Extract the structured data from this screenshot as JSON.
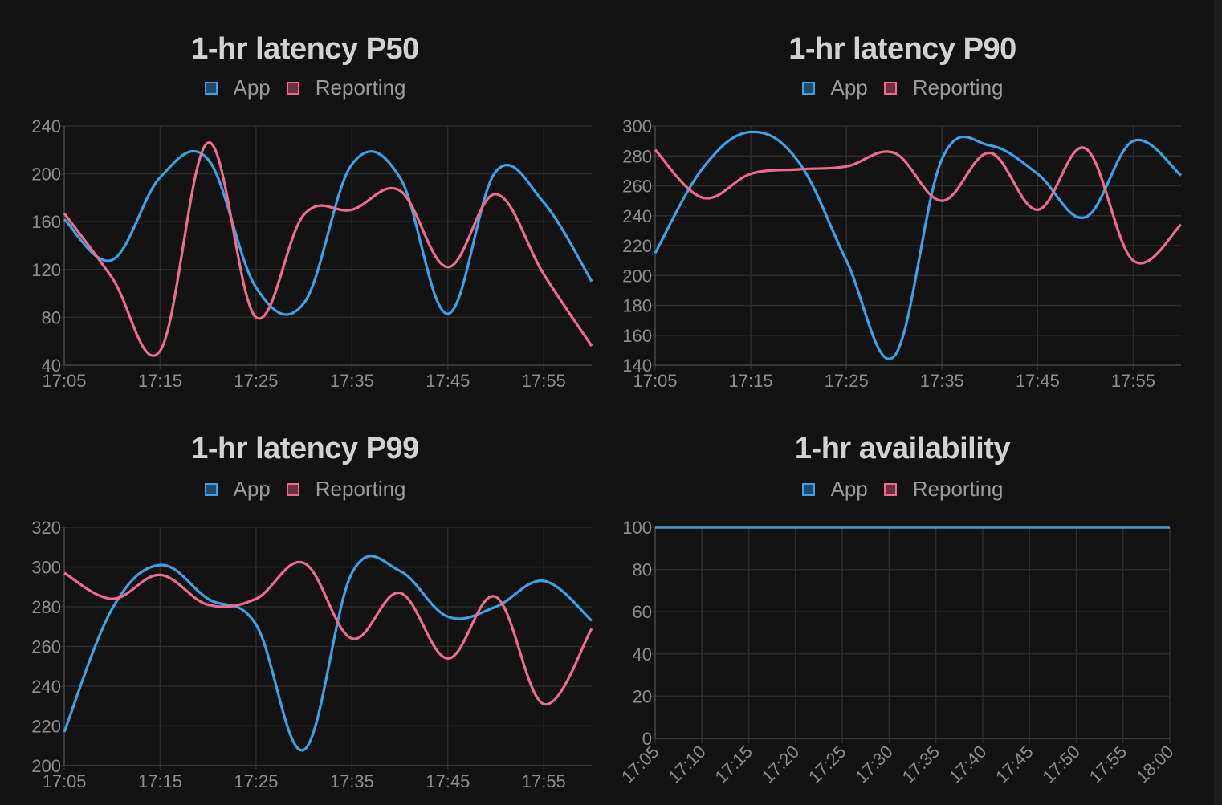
{
  "colors": {
    "app": "#3ca2e6",
    "reporting": "#f06b8b",
    "app_fill": "#1e4a6b",
    "reporting_fill": "#6e2f40"
  },
  "chart_data": [
    {
      "type": "line",
      "title": "1-hr latency P50",
      "x": [
        "17:05",
        "17:10",
        "17:15",
        "17:20",
        "17:25",
        "17:30",
        "17:35",
        "17:40",
        "17:45",
        "17:50",
        "17:55",
        "18:00"
      ],
      "xticks": [
        "17:05",
        "17:15",
        "17:25",
        "17:35",
        "17:45",
        "17:55"
      ],
      "ylim": [
        40,
        240
      ],
      "yticks": [
        40,
        80,
        120,
        160,
        200,
        240
      ],
      "series": [
        {
          "name": "App",
          "values": [
            162,
            128,
            197,
            212,
            105,
            92,
            208,
            197,
            83,
            202,
            176,
            110
          ]
        },
        {
          "name": "Reporting",
          "values": [
            167,
            113,
            52,
            226,
            80,
            166,
            170,
            186,
            122,
            183,
            116,
            56
          ]
        }
      ]
    },
    {
      "type": "line",
      "title": "1-hr latency P90",
      "x": [
        "17:05",
        "17:10",
        "17:15",
        "17:20",
        "17:25",
        "17:30",
        "17:35",
        "17:40",
        "17:45",
        "17:50",
        "17:55",
        "18:00"
      ],
      "xticks": [
        "17:05",
        "17:15",
        "17:25",
        "17:35",
        "17:45",
        "17:55"
      ],
      "ylim": [
        140,
        300
      ],
      "yticks": [
        140,
        160,
        180,
        200,
        220,
        240,
        260,
        280,
        300
      ],
      "series": [
        {
          "name": "App",
          "values": [
            215,
            272,
            296,
            276,
            210,
            146,
            278,
            287,
            268,
            239,
            290,
            267
          ]
        },
        {
          "name": "Reporting",
          "values": [
            284,
            252,
            268,
            271,
            273,
            282,
            250,
            282,
            244,
            285,
            210,
            234
          ]
        }
      ]
    },
    {
      "type": "line",
      "title": "1-hr latency P99",
      "x": [
        "17:05",
        "17:10",
        "17:15",
        "17:20",
        "17:25",
        "17:30",
        "17:35",
        "17:40",
        "17:45",
        "17:50",
        "17:55",
        "18:00"
      ],
      "xticks": [
        "17:05",
        "17:15",
        "17:25",
        "17:35",
        "17:45",
        "17:55"
      ],
      "ylim": [
        200,
        320
      ],
      "yticks": [
        200,
        220,
        240,
        260,
        280,
        300,
        320
      ],
      "series": [
        {
          "name": "App",
          "values": [
            217,
            279,
            301,
            284,
            271,
            208,
            297,
            298,
            275,
            280,
            293,
            273
          ]
        },
        {
          "name": "Reporting",
          "values": [
            297,
            284,
            296,
            281,
            284,
            302,
            264,
            287,
            254,
            285,
            231,
            269
          ]
        }
      ]
    },
    {
      "type": "line",
      "title": "1-hr availability",
      "x": [
        "17:05",
        "17:10",
        "17:15",
        "17:20",
        "17:25",
        "17:30",
        "17:35",
        "17:40",
        "17:45",
        "17:50",
        "17:55",
        "18:00"
      ],
      "xticks": [
        "17:05",
        "17:10",
        "17:15",
        "17:20",
        "17:25",
        "17:30",
        "17:35",
        "17:40",
        "17:45",
        "17:50",
        "17:55",
        "18:00"
      ],
      "xticks_rotated": true,
      "ylim": [
        0,
        100
      ],
      "yticks": [
        0,
        20,
        40,
        60,
        80,
        100
      ],
      "series": [
        {
          "name": "App",
          "values": [
            100,
            100,
            100,
            100,
            100,
            100,
            100,
            100,
            100,
            100,
            100,
            100
          ]
        },
        {
          "name": "Reporting",
          "values": [
            100,
            100,
            100,
            100,
            100,
            100,
            100,
            100,
            100,
            100,
            100,
            100
          ]
        }
      ]
    }
  ]
}
